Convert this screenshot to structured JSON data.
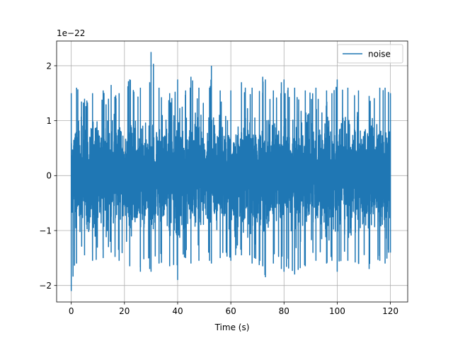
{
  "chart_data": {
    "type": "line",
    "title": "",
    "xlabel": "Time (s)",
    "ylabel": "",
    "y_offset_text": "1e−22",
    "xlim": [
      -5.5,
      126.5
    ],
    "ylim": [
      -2.3,
      2.45
    ],
    "x_ticks": [
      0,
      20,
      40,
      60,
      80,
      100,
      120
    ],
    "y_ticks": [
      -2,
      -1,
      0,
      1,
      2
    ],
    "x_tick_labels": [
      "0",
      "20",
      "40",
      "60",
      "80",
      "100",
      "120"
    ],
    "y_tick_labels": [
      "−2",
      "−1",
      "0",
      "1",
      "2"
    ],
    "grid": true,
    "legend_position": "top-right",
    "series": [
      {
        "name": "noise",
        "color": "#1f77b4",
        "x_range": [
          0,
          120
        ],
        "y_scale": "1e-22",
        "envelope": {
          "x": [
            0,
            2,
            5,
            8,
            12,
            14,
            15,
            18,
            22,
            26,
            29.5,
            30,
            33,
            37,
            40,
            43,
            45,
            48,
            52,
            52.7,
            56,
            60,
            64,
            68,
            72,
            73,
            76,
            79,
            80,
            84,
            88,
            92,
            96,
            98,
            100,
            104,
            108,
            112,
            116,
            118,
            120
          ],
          "upper": [
            1.5,
            1.6,
            1.4,
            1.5,
            1.55,
            1.4,
            1.65,
            1.5,
            1.75,
            1.6,
            1.7,
            2.25,
            1.6,
            1.5,
            1.75,
            1.55,
            1.8,
            1.6,
            1.6,
            2.0,
            1.55,
            1.55,
            1.7,
            1.6,
            1.8,
            1.75,
            1.55,
            1.7,
            1.75,
            1.6,
            1.55,
            1.6,
            1.55,
            1.5,
            1.75,
            1.6,
            1.55,
            1.45,
            1.6,
            1.6,
            1.5
          ],
          "lower": [
            -2.1,
            -1.6,
            -1.45,
            -1.55,
            -1.5,
            -1.3,
            -1.4,
            -1.55,
            -1.65,
            -1.75,
            -1.7,
            -1.75,
            -1.6,
            -1.65,
            -1.9,
            -1.5,
            -1.6,
            -1.55,
            -1.55,
            -1.6,
            -1.5,
            -1.55,
            -1.45,
            -1.6,
            -1.65,
            -1.85,
            -1.6,
            -1.7,
            -1.75,
            -1.8,
            -1.65,
            -1.55,
            -1.6,
            -1.55,
            -1.75,
            -1.55,
            -1.6,
            -1.7,
            -1.55,
            -1.6,
            -1.4
          ]
        }
      }
    ]
  }
}
